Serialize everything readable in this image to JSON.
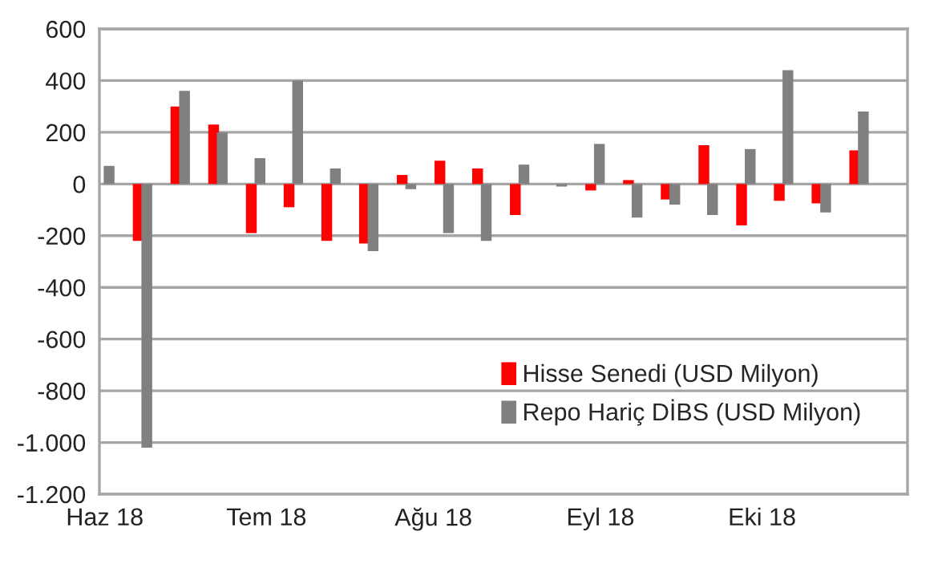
{
  "chart_data": {
    "type": "bar",
    "x": [
      "2018-06-01",
      "2018-06-08",
      "2018-06-15",
      "2018-06-22",
      "2018-06-29",
      "2018-07-06",
      "2018-07-13",
      "2018-07-20",
      "2018-07-27",
      "2018-08-03",
      "2018-08-10",
      "2018-08-17",
      "2018-08-24",
      "2018-08-31",
      "2018-09-07",
      "2018-09-14",
      "2018-09-21",
      "2018-09-28",
      "2018-10-05",
      "2018-10-12",
      "2018-10-19"
    ],
    "series": [
      {
        "name": "Hisse Senedi (USD Milyon)",
        "color": "#ff0000",
        "values": [
          null,
          -220,
          300,
          230,
          -190,
          -90,
          -220,
          -230,
          35,
          90,
          60,
          -120,
          null,
          -25,
          15,
          -60,
          150,
          -160,
          -65,
          -75,
          130
        ]
      },
      {
        "name": "Repo Hariç DİBS (USD Milyon)",
        "color": "#808080",
        "values": [
          70,
          -1020,
          360,
          200,
          100,
          400,
          60,
          -260,
          -20,
          -190,
          -220,
          75,
          -10,
          155,
          -130,
          -80,
          -120,
          135,
          440,
          -110,
          280
        ]
      }
    ],
    "xlim": [
      "2018-05-31",
      "2018-10-28"
    ],
    "xticks": [
      {
        "value": "2018-06-01",
        "label": "Haz 18"
      },
      {
        "value": "2018-07-01",
        "label": "Tem 18"
      },
      {
        "value": "2018-08-01",
        "label": "Ağu 18"
      },
      {
        "value": "2018-09-01",
        "label": "Eyl 18"
      },
      {
        "value": "2018-10-01",
        "label": "Eki 18"
      }
    ],
    "ylim": [
      -1200,
      600
    ],
    "yticks": [
      {
        "value": -1200,
        "label": "-1.200"
      },
      {
        "value": -1000,
        "label": "-1.000"
      },
      -800,
      -600,
      -400,
      -200,
      0,
      200,
      400,
      600
    ],
    "grid": "y",
    "legend": "bottom right"
  }
}
